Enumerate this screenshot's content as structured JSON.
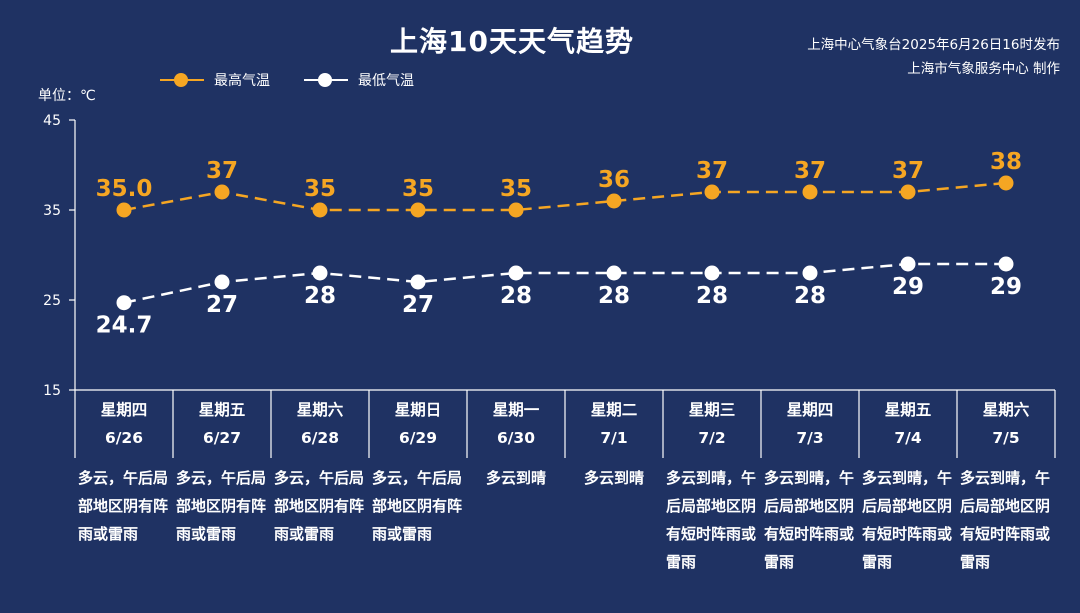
{
  "header": {
    "title": "上海10天天气趋势",
    "issuer_line1": "上海中心气象台2025年6月26日16时发布",
    "issuer_line2": "上海市气象服务中心 制作"
  },
  "legend": {
    "high_label": "最高气温",
    "low_label": "最低气温"
  },
  "unit_label": "单位：℃",
  "colors": {
    "background": "#1f3263",
    "high": "#f5a623",
    "low": "#ffffff",
    "axis": "#ffffff"
  },
  "chart_data": {
    "type": "line",
    "x": [
      "6/26",
      "6/27",
      "6/28",
      "6/29",
      "6/30",
      "7/1",
      "7/2",
      "7/3",
      "7/4",
      "7/5"
    ],
    "series": [
      {
        "name": "最高气温",
        "values": [
          35.0,
          37,
          35,
          35,
          35,
          36,
          37,
          37,
          37,
          38
        ],
        "labels": [
          "35.0",
          "37",
          "35",
          "35",
          "35",
          "36",
          "37",
          "37",
          "37",
          "38"
        ],
        "color": "#f5a623"
      },
      {
        "name": "最低气温",
        "values": [
          24.7,
          27,
          28,
          27,
          28,
          28,
          28,
          28,
          29,
          29
        ],
        "labels": [
          "24.7",
          "27",
          "28",
          "27",
          "28",
          "28",
          "28",
          "28",
          "29",
          "29"
        ],
        "color": "#ffffff"
      }
    ],
    "ylabel": "单位：℃",
    "ylim": [
      15,
      45
    ],
    "yticks": [
      15,
      25,
      35,
      45
    ],
    "grid": false,
    "legend_position": "top-left"
  },
  "days": [
    {
      "weekday": "星期四",
      "date": "6/26",
      "desc": "多云，午后局部地区阴有阵雨或雷雨"
    },
    {
      "weekday": "星期五",
      "date": "6/27",
      "desc": "多云，午后局部地区阴有阵雨或雷雨"
    },
    {
      "weekday": "星期六",
      "date": "6/28",
      "desc": "多云，午后局部地区阴有阵雨或雷雨"
    },
    {
      "weekday": "星期日",
      "date": "6/29",
      "desc": "多云，午后局部地区阴有阵雨或雷雨"
    },
    {
      "weekday": "星期一",
      "date": "6/30",
      "desc": "多云到晴"
    },
    {
      "weekday": "星期二",
      "date": "7/1",
      "desc": "多云到晴"
    },
    {
      "weekday": "星期三",
      "date": "7/2",
      "desc": "多云到晴，午后局部地区阴有短时阵雨或雷雨"
    },
    {
      "weekday": "星期四",
      "date": "7/3",
      "desc": "多云到晴，午后局部地区阴有短时阵雨或雷雨"
    },
    {
      "weekday": "星期五",
      "date": "7/4",
      "desc": "多云到晴，午后局部地区阴有短时阵雨或雷雨"
    },
    {
      "weekday": "星期六",
      "date": "7/5",
      "desc": "多云到晴，午后局部地区阴有短时阵雨或雷雨"
    }
  ]
}
